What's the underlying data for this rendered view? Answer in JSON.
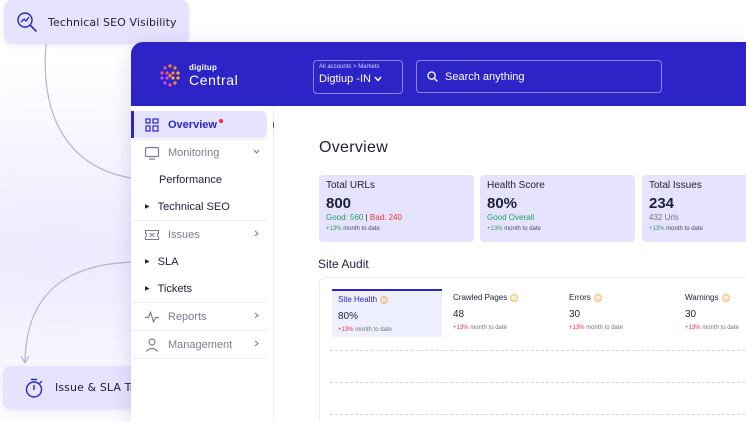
{
  "callouts": {
    "top": {
      "label": "Technical SEO Visibility",
      "icon": "trend-up-search-icon"
    },
    "bottom": {
      "label": "Issue & SLA Tracking",
      "icon": "stopwatch-icon"
    }
  },
  "brand": {
    "small": "digitup",
    "name": "Central",
    "colors": {
      "primary": "#2d24c7",
      "accent": "#e6e3ff"
    }
  },
  "account": {
    "breadcrumb": "All accounts > Markets",
    "name": "Digtiup -IN"
  },
  "search": {
    "placeholder": "Search anything"
  },
  "sidebar": {
    "items": [
      {
        "label": "Overview",
        "icon": "dashboard-grid-icon",
        "active": true
      },
      {
        "label": "Monitoring",
        "icon": "monitor-icon"
      },
      {
        "label": "Performance"
      },
      {
        "label": "Technical SEO"
      },
      {
        "label": "Issues",
        "icon": "issues-ticket-icon"
      },
      {
        "label": "SLA"
      },
      {
        "label": "Tickets"
      },
      {
        "label": "Reports",
        "icon": "pulse-icon"
      },
      {
        "label": "Management",
        "icon": "user-icon"
      }
    ]
  },
  "main": {
    "title": "Overview",
    "cards": [
      {
        "label": "Total URLs",
        "value": "800",
        "good": "Good: 560",
        "sep": "|",
        "bad": "Bad: 240",
        "trend_pct": "+13%",
        "trend_text": "month to date"
      },
      {
        "label": "Health Score",
        "value": "80%",
        "sub": "Good Overall",
        "trend_pct": "+13%",
        "trend_text": "month to date"
      },
      {
        "label": "Total Issues",
        "value": "234",
        "sub": "432 Urls",
        "trend_pct": "+13%",
        "trend_text": "month to date"
      }
    ],
    "section": "Site Audit",
    "audit_tabs": [
      {
        "label": "Site Health",
        "value": "80%",
        "trend_pct": "+13%",
        "trend_text": "month to date"
      },
      {
        "label": "Crawled Pages",
        "value": "48",
        "trend_pct": "+13%",
        "trend_text": "month to date"
      },
      {
        "label": "Errors",
        "value": "30",
        "trend_pct": "+13%",
        "trend_text": "month to date"
      },
      {
        "label": "Warnings",
        "value": "30",
        "trend_pct": "+13%",
        "trend_text": "month to date"
      }
    ]
  }
}
